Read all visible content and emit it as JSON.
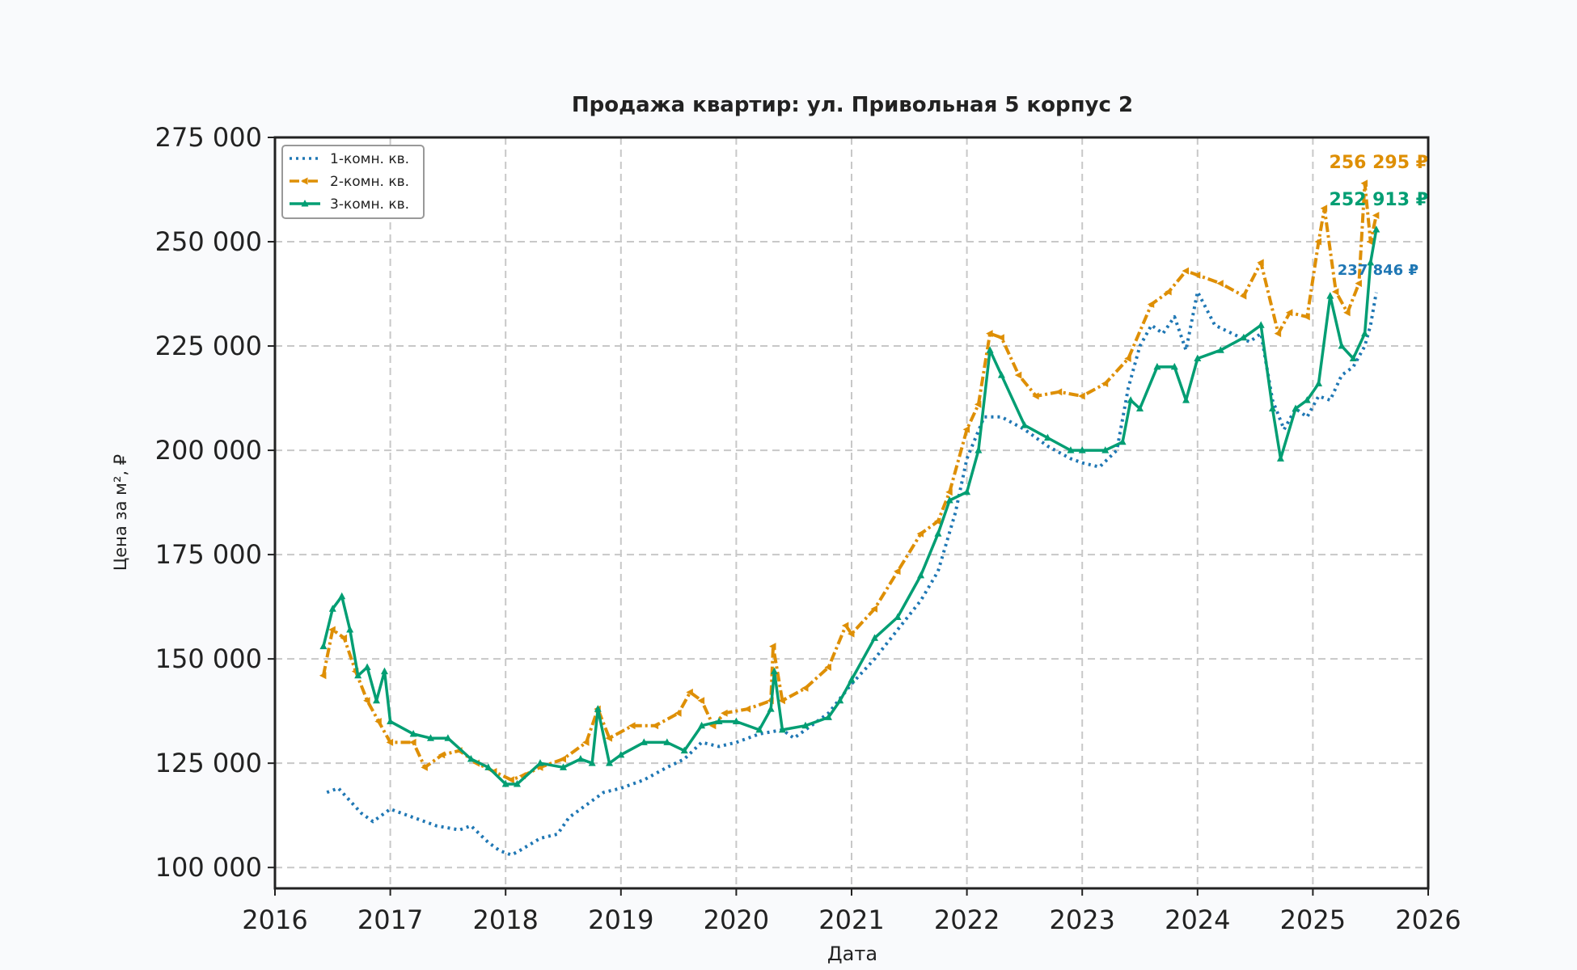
{
  "chart_data": {
    "type": "line",
    "title": "Продажа квартир: ул. Привольная 5 корпус 2",
    "xlabel": "Дата",
    "ylabel": "Цена за м², ₽",
    "xlim": [
      2016.0,
      2026.0
    ],
    "ylim": [
      95000,
      275000
    ],
    "x_ticks": [
      {
        "value": 2016,
        "label": "2016"
      },
      {
        "value": 2017,
        "label": "2017"
      },
      {
        "value": 2018,
        "label": "2018"
      },
      {
        "value": 2019,
        "label": "2019"
      },
      {
        "value": 2020,
        "label": "2020"
      },
      {
        "value": 2021,
        "label": "2021"
      },
      {
        "value": 2022,
        "label": "2022"
      },
      {
        "value": 2023,
        "label": "2023"
      },
      {
        "value": 2024,
        "label": "2024"
      },
      {
        "value": 2025,
        "label": "2025"
      },
      {
        "value": 2026,
        "label": "2026"
      }
    ],
    "y_ticks": [
      {
        "value": 100000,
        "label": "100 000"
      },
      {
        "value": 125000,
        "label": "125 000"
      },
      {
        "value": 150000,
        "label": "150 000"
      },
      {
        "value": 175000,
        "label": "175 000"
      },
      {
        "value": 200000,
        "label": "200 000"
      },
      {
        "value": 225000,
        "label": "225 000"
      },
      {
        "value": 250000,
        "label": "250 000"
      },
      {
        "value": 275000,
        "label": "275 000"
      }
    ],
    "grid": true,
    "legend_position": "top-left",
    "series": [
      {
        "name": "1-комн. кв.",
        "color": "#1f77b4",
        "style": "dotted",
        "marker": "none",
        "end_label": "237 846 ₽",
        "x": [
          2016.45,
          2016.55,
          2016.65,
          2016.75,
          2016.85,
          2017.0,
          2017.2,
          2017.4,
          2017.6,
          2017.7,
          2017.85,
          2017.95,
          2018.05,
          2018.12,
          2018.3,
          2018.45,
          2018.55,
          2018.7,
          2018.85,
          2019.0,
          2019.2,
          2019.4,
          2019.55,
          2019.7,
          2019.85,
          2020.0,
          2020.2,
          2020.4,
          2020.5,
          2020.6,
          2020.8,
          2021.0,
          2021.2,
          2021.4,
          2021.6,
          2021.75,
          2021.9,
          2022.0,
          2022.15,
          2022.3,
          2022.5,
          2022.7,
          2022.9,
          2023.0,
          2023.15,
          2023.3,
          2023.4,
          2023.5,
          2023.6,
          2023.7,
          2023.8,
          2023.9,
          2024.0,
          2024.15,
          2024.3,
          2024.45,
          2024.55,
          2024.65,
          2024.75,
          2024.85,
          2024.95,
          2025.05,
          2025.15,
          2025.25,
          2025.35,
          2025.45,
          2025.5,
          2025.55
        ],
        "y": [
          118000,
          119000,
          116000,
          113000,
          111000,
          114000,
          112000,
          110000,
          109000,
          110000,
          106000,
          104000,
          103000,
          104000,
          107000,
          108000,
          112000,
          115000,
          118000,
          119000,
          121000,
          124000,
          126000,
          130000,
          129000,
          130000,
          132000,
          133000,
          131000,
          133000,
          137000,
          144000,
          150000,
          157000,
          164000,
          171000,
          185000,
          198000,
          208000,
          208000,
          205000,
          201000,
          198000,
          197000,
          196000,
          200000,
          215000,
          225000,
          230000,
          228000,
          232000,
          224000,
          238000,
          230000,
          228000,
          226000,
          228000,
          212000,
          205000,
          210000,
          208000,
          213000,
          212000,
          218000,
          220000,
          225000,
          230000,
          237846
        ]
      },
      {
        "name": "2-комн. кв.",
        "color": "#de8f05",
        "style": "dashdot",
        "marker": "triangle-left",
        "end_label": "256 295 ₽",
        "x": [
          2016.42,
          2016.5,
          2016.6,
          2016.7,
          2016.8,
          2016.9,
          2017.0,
          2017.2,
          2017.3,
          2017.45,
          2017.6,
          2017.75,
          2017.9,
          2018.05,
          2018.15,
          2018.3,
          2018.5,
          2018.7,
          2018.8,
          2018.9,
          2019.1,
          2019.3,
          2019.5,
          2019.6,
          2019.7,
          2019.8,
          2019.9,
          2020.1,
          2020.3,
          2020.32,
          2020.4,
          2020.6,
          2020.8,
          2020.95,
          2021.0,
          2021.2,
          2021.4,
          2021.6,
          2021.75,
          2021.85,
          2022.0,
          2022.1,
          2022.2,
          2022.3,
          2022.45,
          2022.6,
          2022.8,
          2023.0,
          2023.2,
          2023.4,
          2023.6,
          2023.75,
          2023.9,
          2024.0,
          2024.2,
          2024.4,
          2024.55,
          2024.7,
          2024.8,
          2024.95,
          2025.05,
          2025.1,
          2025.2,
          2025.3,
          2025.4,
          2025.45,
          2025.5,
          2025.55
        ],
        "y": [
          146000,
          157000,
          155000,
          147000,
          140000,
          135000,
          130000,
          130000,
          124000,
          127000,
          128000,
          125000,
          123000,
          121000,
          122000,
          124000,
          126000,
          130000,
          138000,
          131000,
          134000,
          134000,
          137000,
          142000,
          140000,
          134000,
          137000,
          138000,
          140000,
          153000,
          140000,
          143000,
          148000,
          158000,
          156000,
          162000,
          171000,
          180000,
          183000,
          190000,
          205000,
          211000,
          228000,
          227000,
          218000,
          213000,
          214000,
          213000,
          216000,
          222000,
          235000,
          238000,
          243000,
          242000,
          240000,
          237000,
          245000,
          228000,
          233000,
          232000,
          250000,
          258000,
          238000,
          233000,
          240000,
          264000,
          250000,
          256295
        ]
      },
      {
        "name": "3-комн. кв.",
        "color": "#029e73",
        "style": "solid",
        "marker": "triangle-up",
        "end_label": "252 913 ₽",
        "x": [
          2016.42,
          2016.5,
          2016.58,
          2016.65,
          2016.72,
          2016.8,
          2016.88,
          2016.95,
          2017.0,
          2017.2,
          2017.35,
          2017.5,
          2017.7,
          2017.85,
          2018.0,
          2018.1,
          2018.3,
          2018.5,
          2018.65,
          2018.75,
          2018.8,
          2018.9,
          2019.0,
          2019.2,
          2019.4,
          2019.55,
          2019.7,
          2019.85,
          2020.0,
          2020.2,
          2020.3,
          2020.33,
          2020.4,
          2020.6,
          2020.8,
          2020.9,
          2021.0,
          2021.2,
          2021.4,
          2021.6,
          2021.75,
          2021.85,
          2022.0,
          2022.1,
          2022.2,
          2022.3,
          2022.5,
          2022.7,
          2022.9,
          2023.0,
          2023.2,
          2023.35,
          2023.42,
          2023.5,
          2023.65,
          2023.8,
          2023.9,
          2024.0,
          2024.2,
          2024.4,
          2024.55,
          2024.65,
          2024.72,
          2024.85,
          2024.95,
          2025.05,
          2025.15,
          2025.25,
          2025.35,
          2025.45,
          2025.5,
          2025.55
        ],
        "y": [
          153000,
          162000,
          165000,
          157000,
          146000,
          148000,
          140000,
          147000,
          135000,
          132000,
          131000,
          131000,
          126000,
          124000,
          120000,
          120000,
          125000,
          124000,
          126000,
          125000,
          138000,
          125000,
          127000,
          130000,
          130000,
          128000,
          134000,
          135000,
          135000,
          133000,
          138000,
          147000,
          133000,
          134000,
          136000,
          140000,
          145000,
          155000,
          160000,
          170000,
          180000,
          188000,
          190000,
          200000,
          224000,
          218000,
          206000,
          203000,
          200000,
          200000,
          200000,
          202000,
          212000,
          210000,
          220000,
          220000,
          212000,
          222000,
          224000,
          227000,
          230000,
          210000,
          198000,
          210000,
          212000,
          216000,
          237000,
          225000,
          222000,
          228000,
          245000,
          252913
        ]
      }
    ]
  }
}
